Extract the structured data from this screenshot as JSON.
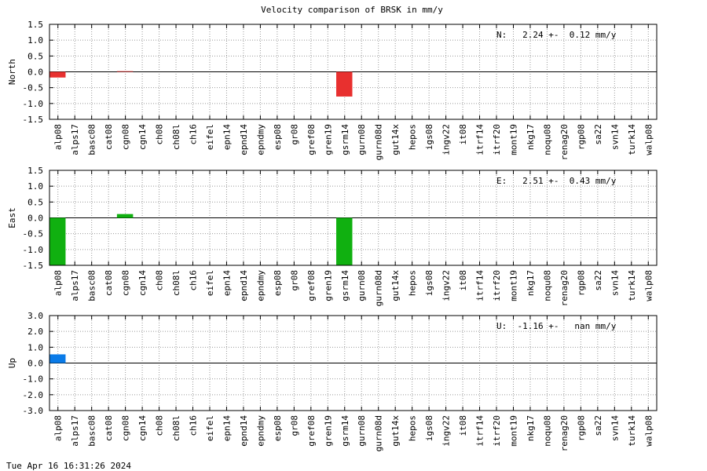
{
  "chart_data": [
    {
      "type": "bar",
      "title": "Velocity comparison of BRSK in mm/y",
      "y_label": "North",
      "annotation": "N:   2.24 +-  0.12 mm/y",
      "color": "#e8302f",
      "categories": [
        "alp08",
        "alps17",
        "basc08",
        "cat08",
        "cgn08",
        "cgn14",
        "ch08",
        "ch08l",
        "ch16",
        "eifel",
        "epn14",
        "epnd14",
        "epndmy",
        "esp08",
        "gr08",
        "gref08",
        "gren19",
        "gsrm14",
        "gurn08",
        "gurn08d",
        "gut14x",
        "hepos",
        "igs08",
        "ingv22",
        "it08",
        "itrf14",
        "itrf20",
        "mont19",
        "nkg17",
        "noqu08",
        "renag20",
        "rgp08",
        "sa22",
        "svn14",
        "turk14",
        "walp08"
      ],
      "values": [
        -0.18,
        null,
        null,
        null,
        0.02,
        null,
        null,
        null,
        null,
        null,
        null,
        null,
        null,
        null,
        null,
        null,
        null,
        -0.78,
        null,
        null,
        null,
        null,
        null,
        null,
        null,
        null,
        null,
        null,
        null,
        null,
        null,
        null,
        null,
        null,
        null,
        null
      ],
      "ylim": [
        -1.5,
        1.5
      ],
      "yticks": [
        {
          "value": -1.5,
          "label": "-1.5"
        },
        {
          "value": -1,
          "label": "-1.0"
        },
        {
          "value": -0.5,
          "label": "-0.5"
        },
        {
          "value": 0,
          "label": "0.0"
        },
        {
          "value": 0.5,
          "label": "0.5"
        },
        {
          "value": 1,
          "label": "1.0"
        },
        {
          "value": 1.5,
          "label": "1.5"
        }
      ],
      "grid": true
    },
    {
      "type": "bar",
      "y_label": "East",
      "annotation": "E:   2.51 +-  0.43 mm/y",
      "color": "#10b010",
      "categories": [
        "alp08",
        "alps17",
        "basc08",
        "cat08",
        "cgn08",
        "cgn14",
        "ch08",
        "ch08l",
        "ch16",
        "eifel",
        "epn14",
        "epnd14",
        "epndmy",
        "esp08",
        "gr08",
        "gref08",
        "gren19",
        "gsrm14",
        "gurn08",
        "gurn08d",
        "gut14x",
        "hepos",
        "igs08",
        "ingv22",
        "it08",
        "itrf14",
        "itrf20",
        "mont19",
        "nkg17",
        "noqu08",
        "renag20",
        "rgp08",
        "sa22",
        "svn14",
        "turk14",
        "walp08"
      ],
      "values": [
        -1.5,
        null,
        null,
        null,
        0.12,
        null,
        null,
        null,
        null,
        null,
        null,
        null,
        null,
        null,
        null,
        null,
        null,
        -1.5,
        null,
        null,
        null,
        null,
        null,
        null,
        null,
        null,
        null,
        null,
        null,
        null,
        null,
        null,
        null,
        null,
        null,
        null
      ],
      "ylim": [
        -1.5,
        1.5
      ],
      "yticks": [
        {
          "value": -1.5,
          "label": "-1.5"
        },
        {
          "value": -1,
          "label": "-1.0"
        },
        {
          "value": -0.5,
          "label": "-0.5"
        },
        {
          "value": 0,
          "label": "0.0"
        },
        {
          "value": 0.5,
          "label": "0.5"
        },
        {
          "value": 1,
          "label": "1.0"
        },
        {
          "value": 1.5,
          "label": "1.5"
        }
      ],
      "grid": true
    },
    {
      "type": "bar",
      "y_label": "Up",
      "annotation": "U:  -1.16 +-   nan mm/y",
      "color": "#0a7be8",
      "categories": [
        "alp08",
        "alps17",
        "basc08",
        "cat08",
        "cgn08",
        "cgn14",
        "ch08",
        "ch08l",
        "ch16",
        "eifel",
        "epn14",
        "epnd14",
        "epndmy",
        "esp08",
        "gr08",
        "gref08",
        "gren19",
        "gsrm14",
        "gurn08",
        "gurn08d",
        "gut14x",
        "hepos",
        "igs08",
        "ingv22",
        "it08",
        "itrf14",
        "itrf20",
        "mont19",
        "nkg17",
        "noqu08",
        "renag20",
        "rgp08",
        "sa22",
        "svn14",
        "turk14",
        "walp08"
      ],
      "values": [
        0.55,
        null,
        null,
        null,
        null,
        null,
        null,
        null,
        null,
        null,
        null,
        null,
        null,
        null,
        null,
        null,
        null,
        null,
        null,
        null,
        null,
        null,
        null,
        null,
        null,
        null,
        null,
        null,
        null,
        null,
        null,
        null,
        null,
        null,
        null,
        null
      ],
      "ylim": [
        -3,
        3
      ],
      "yticks": [
        {
          "value": -3,
          "label": "-3.0"
        },
        {
          "value": -2,
          "label": "-2.0"
        },
        {
          "value": -1,
          "label": "-1.0"
        },
        {
          "value": 0,
          "label": "0.0"
        },
        {
          "value": 1,
          "label": "1.0"
        },
        {
          "value": 2,
          "label": "2.0"
        },
        {
          "value": 3,
          "label": "3.0"
        }
      ],
      "grid": true
    }
  ],
  "timestamp": "Tue Apr 16 16:31:26 2024"
}
